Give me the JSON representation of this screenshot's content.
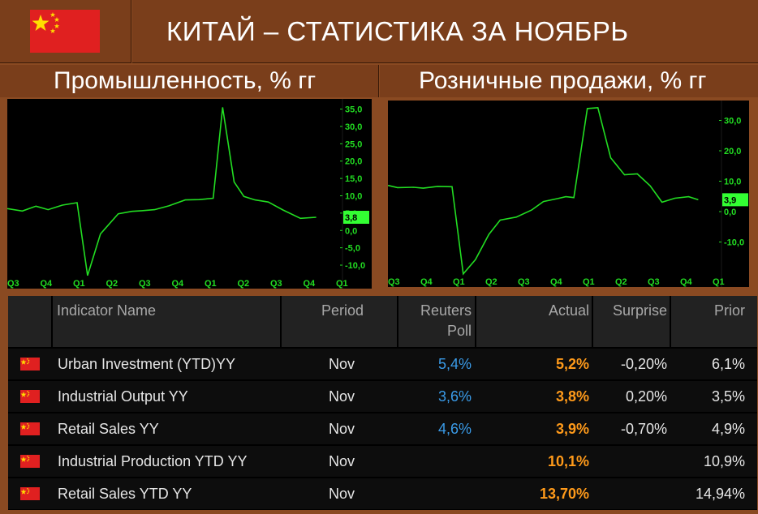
{
  "header": {
    "title": "КИТАЙ – СТАТИСТИКА ЗА НОЯБРЬ",
    "flag_icon": "china-flag-icon",
    "flag_color": "#e02020",
    "star_color": "#ffde00"
  },
  "charts": {
    "industry": {
      "title": "Промышленность, % гг"
    },
    "retail": {
      "title": "Розничные продажи, % гг"
    }
  },
  "chart_data": [
    {
      "type": "line",
      "title": "Промышленность, % гг",
      "line_color": "#22dd22",
      "x_ticks": [
        "Q3",
        "Q4",
        "Q1",
        "Q2",
        "Q3",
        "Q4",
        "Q1",
        "Q2",
        "Q3",
        "Q4",
        "Q1"
      ],
      "y_ticks": [
        "35,0",
        "30,0",
        "25,0",
        "20,0",
        "15,0",
        "10,0",
        "5,0",
        "0,0",
        "-5,0",
        "-10,0"
      ],
      "ylim": [
        -13.5,
        37
      ],
      "x": [
        0,
        0.43,
        0.82,
        1.17,
        1.58,
        2.0,
        2.3,
        2.67,
        3.18,
        3.57,
        3.85,
        4.22,
        4.63,
        5.1,
        5.5,
        5.9,
        6.17,
        6.5,
        6.78,
        7.1,
        7.48,
        7.9,
        8.4,
        8.85
      ],
      "values": [
        6.3,
        5.6,
        7.0,
        6.0,
        7.3,
        8.0,
        -13.0,
        -1.0,
        4.8,
        5.5,
        5.7,
        6.0,
        7.1,
        8.8,
        8.9,
        9.3,
        35.5,
        14.0,
        9.8,
        8.8,
        8.2,
        5.9,
        3.5,
        3.8
      ],
      "last_value": "3,8",
      "grid": false
    },
    {
      "type": "line",
      "title": "Розничные продажи, % гг",
      "line_color": "#22dd22",
      "x_ticks": [
        "Q3",
        "Q4",
        "Q1",
        "Q2",
        "Q3",
        "Q4",
        "Q1",
        "Q2",
        "Q3",
        "Q4",
        "Q1"
      ],
      "y_ticks": [
        "30,0",
        "20,0",
        "10,0",
        "0,0",
        "-10,0"
      ],
      "ylim": [
        -20,
        36
      ],
      "x": [
        0,
        0.3,
        0.8,
        1.1,
        1.55,
        2.0,
        2.35,
        2.73,
        3.15,
        3.5,
        4.0,
        4.48,
        4.85,
        5.3,
        5.55,
        5.8,
        6.22,
        6.55,
        6.95,
        7.38,
        7.78,
        8.18,
        8.55,
        8.95,
        9.38,
        9.68
      ],
      "values": [
        8.6,
        7.9,
        8.0,
        7.7,
        8.3,
        8.2,
        -20.5,
        -15.8,
        -7.5,
        -2.8,
        -1.8,
        0.5,
        3.3,
        4.3,
        4.9,
        4.6,
        33.9,
        34.2,
        17.7,
        12.1,
        12.4,
        8.5,
        3.1,
        4.4,
        4.9,
        3.9
      ],
      "last_value": "3,9",
      "grid": false
    }
  ],
  "table": {
    "columns": {
      "indicator": "Indicator Name",
      "period": "Period",
      "poll_line1": "Reuters",
      "poll_line2": "Poll",
      "actual": "Actual",
      "surprise": "Surprise",
      "prior": "Prior"
    },
    "rows": [
      {
        "indicator": "Urban Investment (YTD)YY",
        "period": "Nov",
        "poll": "5,4%",
        "actual": "5,2%",
        "surprise": "-0,20%",
        "prior": "6,1%"
      },
      {
        "indicator": "Industrial Output YY",
        "period": "Nov",
        "poll": "3,6%",
        "actual": "3,8%",
        "surprise": "0,20%",
        "prior": "3,5%"
      },
      {
        "indicator": "Retail Sales YY",
        "period": "Nov",
        "poll": "4,6%",
        "actual": "3,9%",
        "surprise": "-0,70%",
        "prior": "4,9%"
      },
      {
        "indicator": "Industrial Production YTD YY",
        "period": "Nov",
        "poll": "",
        "actual": "10,1%",
        "surprise": "",
        "prior": "10,9%"
      },
      {
        "indicator": "Retail Sales YTD YY",
        "period": "Nov",
        "poll": "",
        "actual": "13,70%",
        "surprise": "",
        "prior": "14,94%"
      }
    ],
    "colors": {
      "poll": "#3a9be8",
      "actual": "#ff9a1a",
      "text": "#e6e6e6",
      "header_text": "#a8a8a8"
    }
  }
}
